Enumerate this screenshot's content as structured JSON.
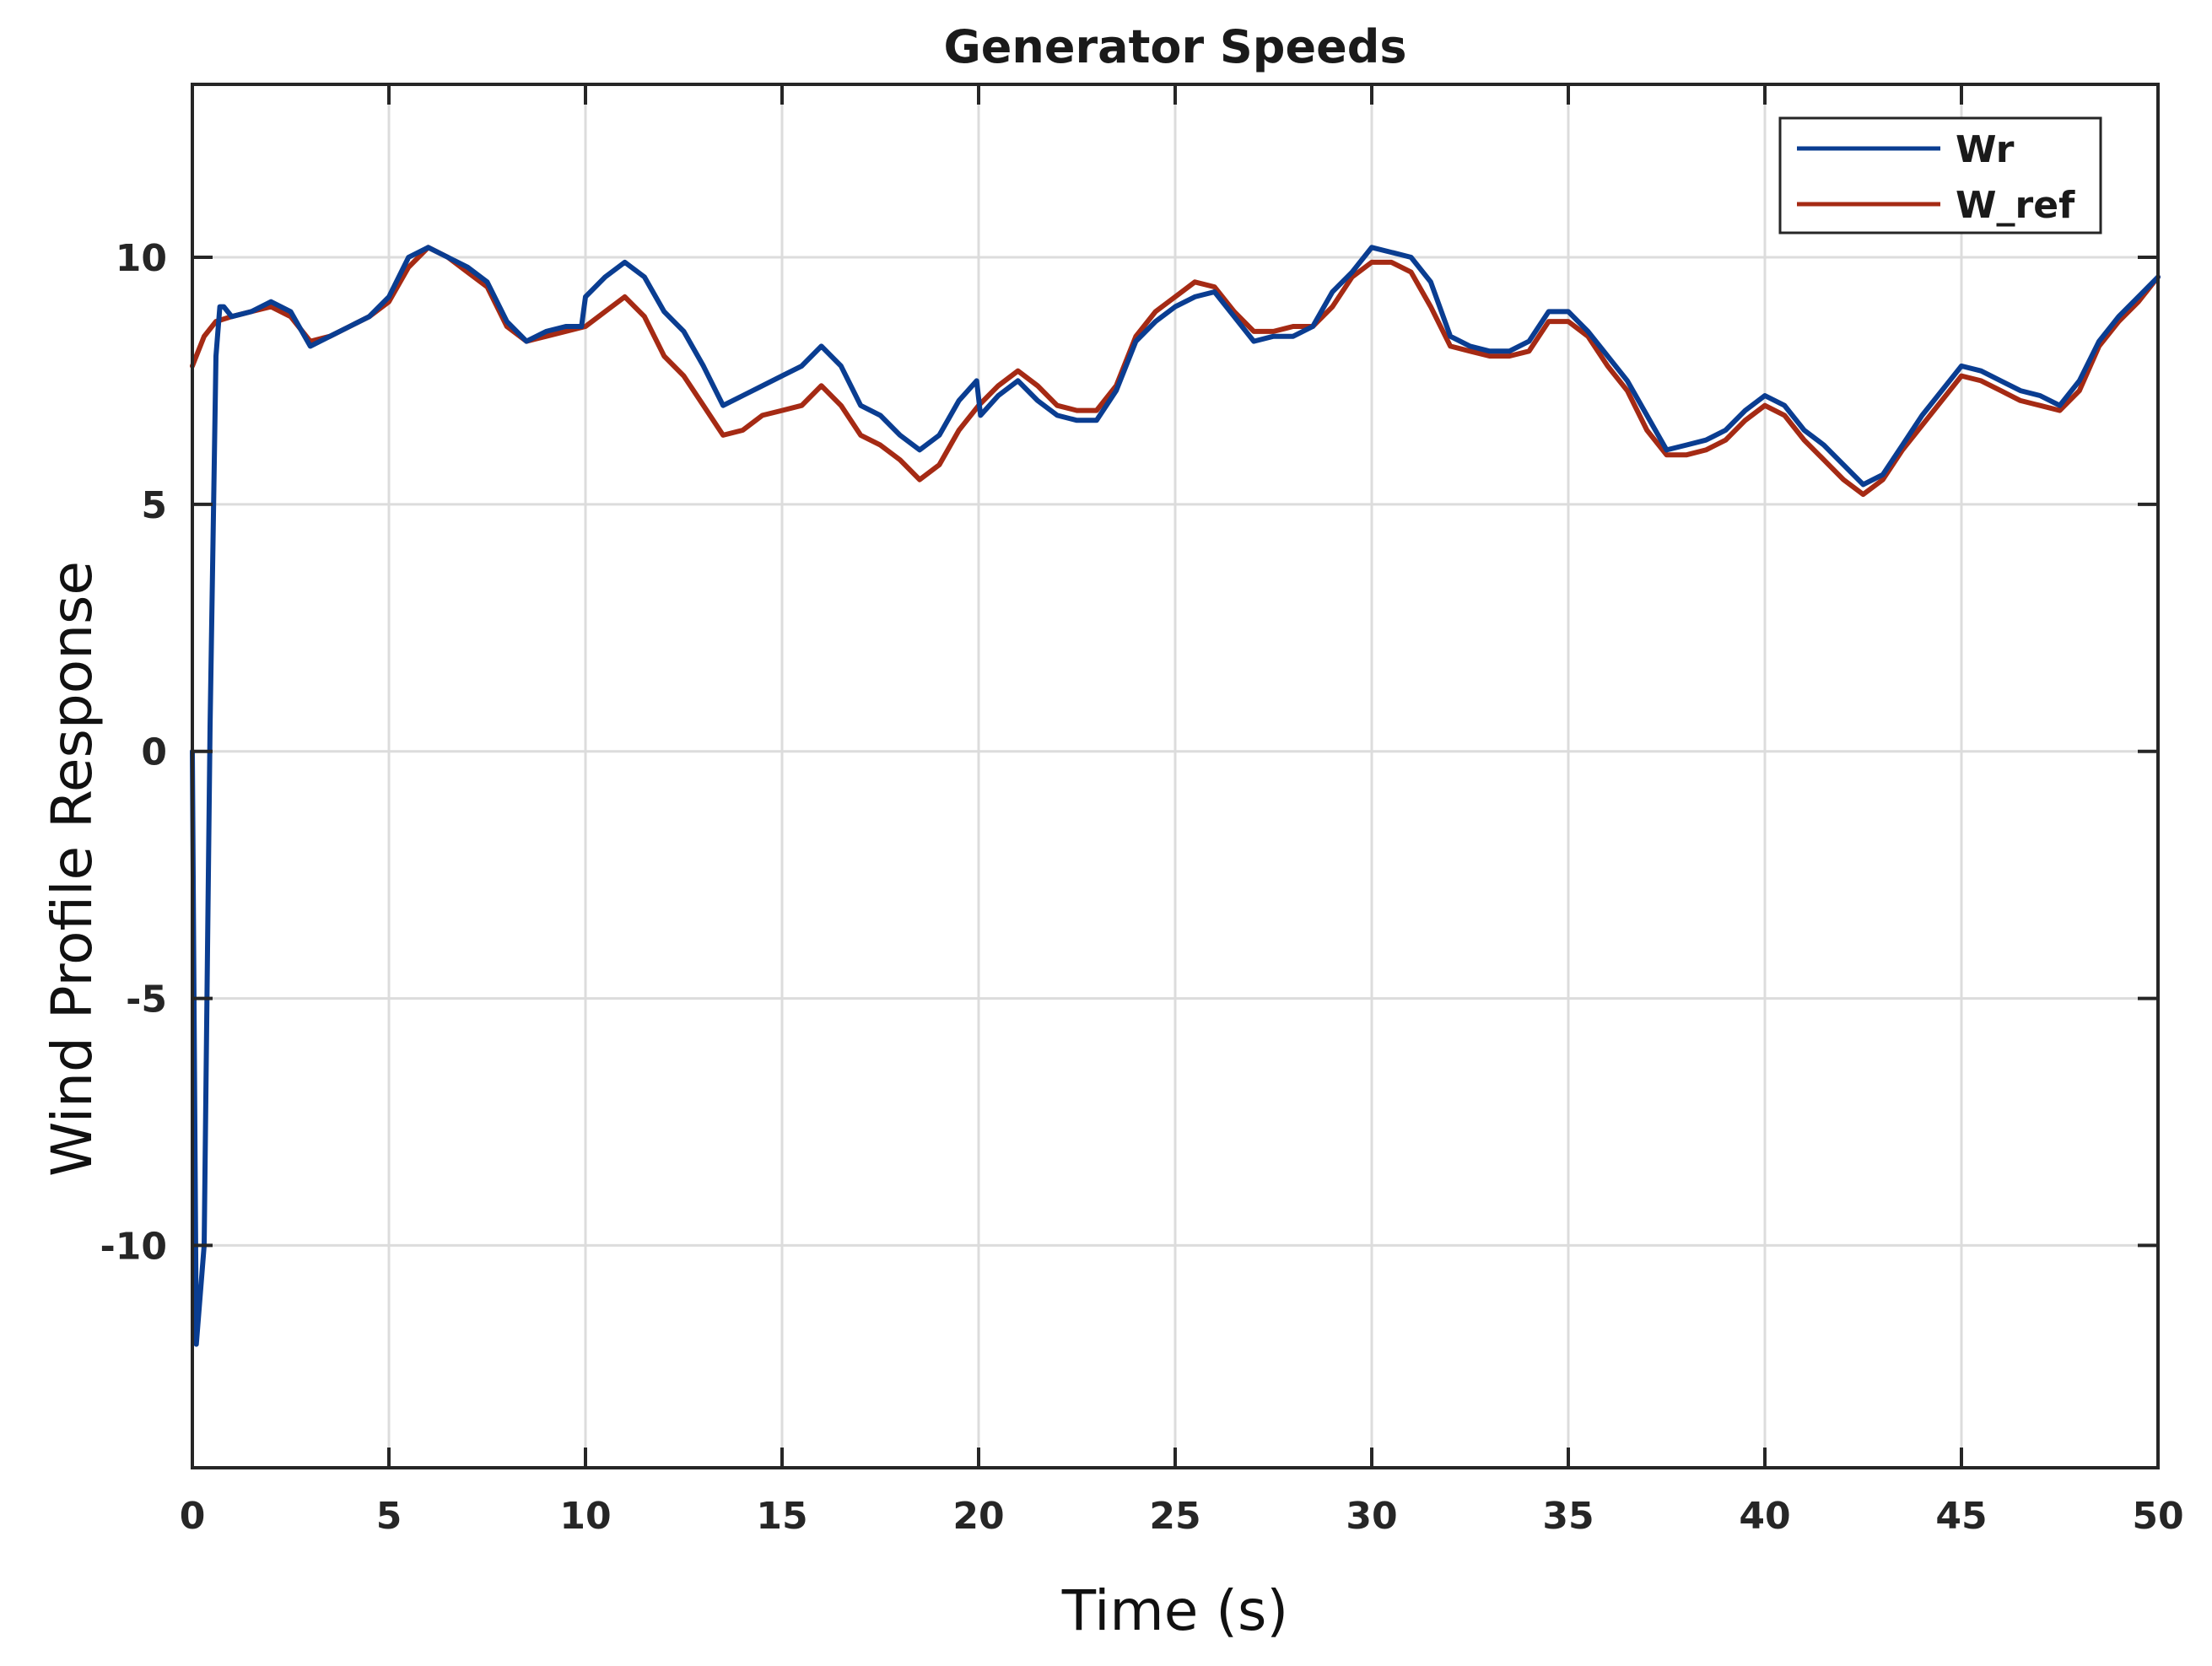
{
  "chart_data": {
    "type": "line",
    "title": "Generator Speeds",
    "xlabel": "Time (s)",
    "ylabel": "Wind Profile Response",
    "xlim": [
      0,
      50
    ],
    "ylim": [
      -14.5,
      13.5
    ],
    "xticks": [
      0,
      5,
      10,
      15,
      20,
      25,
      30,
      35,
      40,
      45,
      50
    ],
    "yticks": [
      -10,
      -5,
      0,
      5,
      10
    ],
    "grid": true,
    "legend_position": "top-right",
    "series": [
      {
        "name": "Wr",
        "color": "#0a3d91",
        "x": [
          0,
          0.1,
          0.3,
          0.45,
          0.6,
          0.7,
          0.8,
          1.0,
          1.5,
          2.0,
          2.5,
          3.0,
          3.5,
          4.0,
          4.5,
          5.0,
          5.5,
          6.0,
          6.5,
          7.0,
          7.5,
          8.0,
          8.5,
          9.0,
          9.5,
          9.9,
          10.0,
          10.5,
          11.0,
          11.5,
          12.0,
          12.5,
          13.0,
          13.5,
          14.0,
          14.5,
          15.0,
          15.5,
          16.0,
          16.5,
          17.0,
          17.5,
          18.0,
          18.5,
          19.0,
          19.5,
          19.95,
          20.05,
          20.5,
          21.0,
          21.5,
          22.0,
          22.5,
          23.0,
          23.5,
          24.0,
          24.5,
          25.0,
          25.5,
          26.0,
          26.5,
          27.0,
          27.5,
          28.0,
          28.5,
          29.0,
          29.5,
          30.0,
          30.5,
          31.0,
          31.5,
          32.0,
          32.5,
          33.0,
          33.5,
          34.0,
          34.5,
          35.0,
          35.5,
          36.0,
          36.5,
          37.0,
          37.5,
          38.0,
          38.5,
          39.0,
          39.5,
          40.0,
          40.5,
          41.0,
          41.5,
          42.0,
          42.5,
          43.0,
          43.5,
          44.0,
          44.5,
          45.0,
          45.5,
          46.0,
          46.5,
          47.0,
          47.5,
          48.0,
          48.5,
          49.0,
          49.5,
          50.0
        ],
        "y": [
          0.0,
          -12.0,
          -10.0,
          0.5,
          8.0,
          9.0,
          9.0,
          8.8,
          8.9,
          9.1,
          8.9,
          8.2,
          8.4,
          8.6,
          8.8,
          9.2,
          10.0,
          10.2,
          10.0,
          9.8,
          9.5,
          8.7,
          8.3,
          8.5,
          8.6,
          8.6,
          9.2,
          9.6,
          9.9,
          9.6,
          8.9,
          8.5,
          7.8,
          7.0,
          7.2,
          7.4,
          7.6,
          7.8,
          8.2,
          7.8,
          7.0,
          6.8,
          6.4,
          6.1,
          6.4,
          7.1,
          7.5,
          6.8,
          7.2,
          7.5,
          7.1,
          6.8,
          6.7,
          6.7,
          7.3,
          8.3,
          8.7,
          9.0,
          9.2,
          9.3,
          8.8,
          8.3,
          8.4,
          8.4,
          8.6,
          9.3,
          9.7,
          10.2,
          10.1,
          10.0,
          9.5,
          8.4,
          8.2,
          8.1,
          8.1,
          8.3,
          8.9,
          8.9,
          8.5,
          8.0,
          7.5,
          6.8,
          6.1,
          6.2,
          6.3,
          6.5,
          6.9,
          7.2,
          7.0,
          6.5,
          6.2,
          5.8,
          5.4,
          5.6,
          6.2,
          6.8,
          7.3,
          7.8,
          7.7,
          7.5,
          7.3,
          7.2,
          7.0,
          7.5,
          8.3,
          8.8,
          9.2,
          9.6
        ]
      },
      {
        "name": "W_ref",
        "color": "#a52a14",
        "x": [
          0,
          0.3,
          0.6,
          1.0,
          1.5,
          2.0,
          2.5,
          3.0,
          3.5,
          4.0,
          4.5,
          5.0,
          5.5,
          6.0,
          6.5,
          7.0,
          7.5,
          8.0,
          8.5,
          9.0,
          9.5,
          10.0,
          10.5,
          11.0,
          11.5,
          12.0,
          12.5,
          13.0,
          13.5,
          14.0,
          14.5,
          15.0,
          15.5,
          16.0,
          16.5,
          17.0,
          17.5,
          18.0,
          18.5,
          19.0,
          19.5,
          20.0,
          20.5,
          21.0,
          21.5,
          22.0,
          22.5,
          23.0,
          23.5,
          24.0,
          24.5,
          25.0,
          25.5,
          26.0,
          26.5,
          27.0,
          27.5,
          28.0,
          28.5,
          29.0,
          29.5,
          30.0,
          30.5,
          31.0,
          31.5,
          32.0,
          32.5,
          33.0,
          33.5,
          34.0,
          34.5,
          35.0,
          35.5,
          36.0,
          36.5,
          37.0,
          37.5,
          38.0,
          38.5,
          39.0,
          39.5,
          40.0,
          40.5,
          41.0,
          41.5,
          42.0,
          42.5,
          43.0,
          43.5,
          44.0,
          44.5,
          45.0,
          45.5,
          46.0,
          46.5,
          47.0,
          47.5,
          48.0,
          48.5,
          49.0,
          49.5,
          50.0
        ],
        "y": [
          7.8,
          8.4,
          8.7,
          8.8,
          8.9,
          9.0,
          8.8,
          8.3,
          8.4,
          8.6,
          8.8,
          9.1,
          9.8,
          10.2,
          10.0,
          9.7,
          9.4,
          8.6,
          8.3,
          8.4,
          8.5,
          8.6,
          8.9,
          9.2,
          8.8,
          8.0,
          7.6,
          7.0,
          6.4,
          6.5,
          6.8,
          6.9,
          7.0,
          7.4,
          7.0,
          6.4,
          6.2,
          5.9,
          5.5,
          5.8,
          6.5,
          7.0,
          7.4,
          7.7,
          7.4,
          7.0,
          6.9,
          6.9,
          7.4,
          8.4,
          8.9,
          9.2,
          9.5,
          9.4,
          8.9,
          8.5,
          8.5,
          8.6,
          8.6,
          9.0,
          9.6,
          9.9,
          9.9,
          9.7,
          9.0,
          8.2,
          8.1,
          8.0,
          8.0,
          8.1,
          8.7,
          8.7,
          8.4,
          7.8,
          7.3,
          6.5,
          6.0,
          6.0,
          6.1,
          6.3,
          6.7,
          7.0,
          6.8,
          6.3,
          5.9,
          5.5,
          5.2,
          5.5,
          6.1,
          6.6,
          7.1,
          7.6,
          7.5,
          7.3,
          7.1,
          7.0,
          6.9,
          7.3,
          8.2,
          8.7,
          9.1,
          9.6
        ]
      }
    ]
  }
}
